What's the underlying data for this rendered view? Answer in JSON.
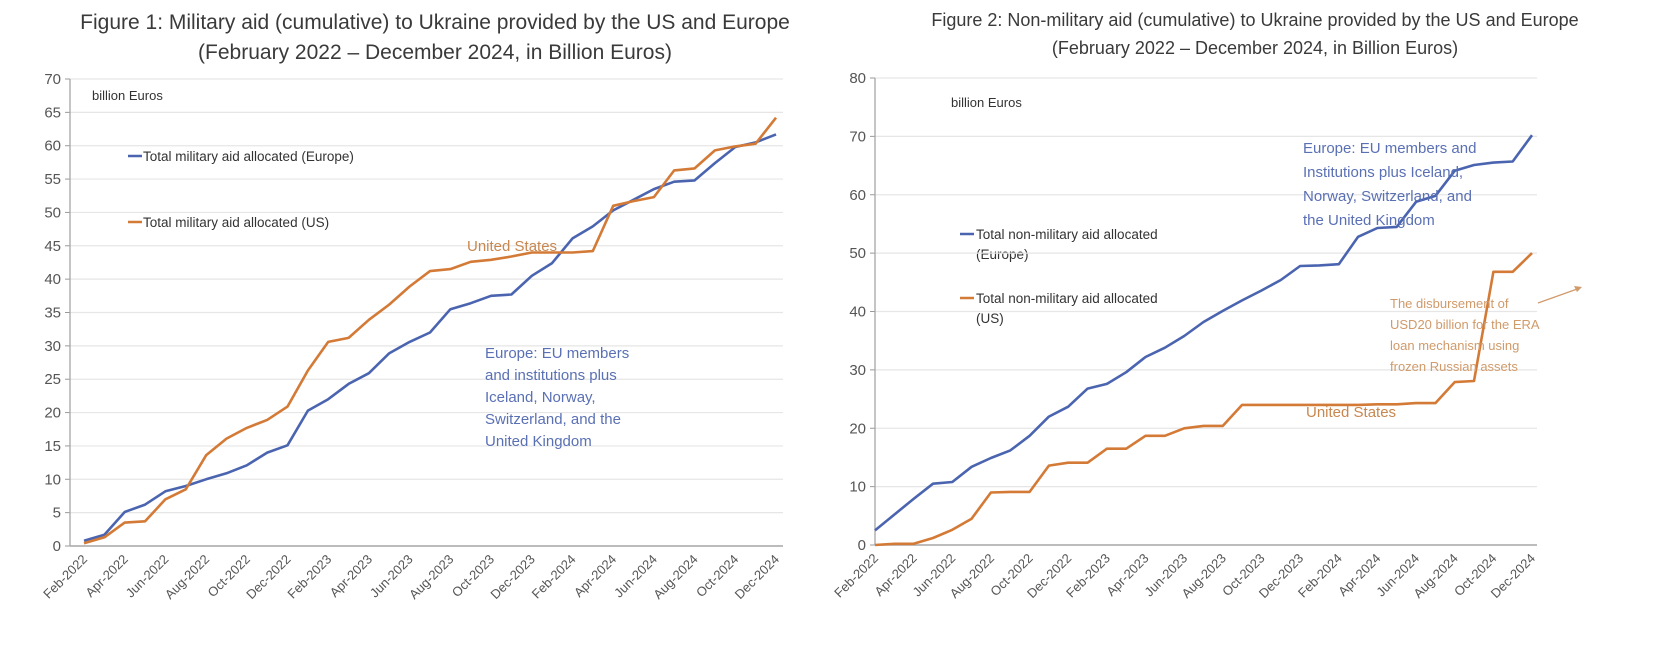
{
  "chart_data": [
    {
      "type": "line",
      "title": "Figure 1: Military aid (cumulative) to Ukraine provided by the US and Europe",
      "subtitle": "(February 2022 – December 2024, in Billion Euros)",
      "unit_label": "billion Euros",
      "xlabel": "",
      "ylabel": "",
      "ylim": [
        0,
        70
      ],
      "yticks": [
        0,
        5,
        10,
        15,
        20,
        25,
        30,
        35,
        40,
        45,
        50,
        55,
        60,
        65,
        70
      ],
      "grid": true,
      "legend_position": "top-left",
      "x_tick_labels": [
        "Feb-2022",
        "Apr-2022",
        "Jun-2022",
        "Aug-2022",
        "Oct-2022",
        "Dec-2022",
        "Feb-2023",
        "Apr-2023",
        "Jun-2023",
        "Aug-2023",
        "Oct-2023",
        "Dec-2023",
        "Feb-2024",
        "Apr-2024",
        "Jun-2024",
        "Aug-2024",
        "Oct-2024",
        "Dec-2024"
      ],
      "x": [
        "Feb-2022",
        "Mar-2022",
        "Apr-2022",
        "May-2022",
        "Jun-2022",
        "Jul-2022",
        "Aug-2022",
        "Sep-2022",
        "Oct-2022",
        "Nov-2022",
        "Dec-2022",
        "Jan-2023",
        "Feb-2023",
        "Mar-2023",
        "Apr-2023",
        "May-2023",
        "Jun-2023",
        "Jul-2023",
        "Aug-2023",
        "Sep-2023",
        "Oct-2023",
        "Nov-2023",
        "Dec-2023",
        "Jan-2024",
        "Feb-2024",
        "Mar-2024",
        "Apr-2024",
        "May-2024",
        "Jun-2024",
        "Jul-2024",
        "Aug-2024",
        "Sep-2024",
        "Oct-2024",
        "Nov-2024",
        "Dec-2024"
      ],
      "series": [
        {
          "name": "Total military aid allocated (Europe)",
          "color": "#4a64b0",
          "values": [
            0.8,
            1.7,
            5.1,
            6.2,
            8.2,
            9.0,
            10.0,
            10.9,
            12.1,
            14.0,
            15.1,
            20.3,
            22.0,
            24.3,
            25.9,
            28.9,
            30.6,
            32.0,
            35.5,
            36.4,
            37.5,
            37.7,
            40.5,
            42.4,
            46.1,
            47.9,
            50.3,
            51.9,
            53.5,
            54.6,
            54.8,
            57.4,
            59.8,
            60.5,
            61.7
          ]
        },
        {
          "name": "Total military aid allocated (US)",
          "color": "#d47a37",
          "values": [
            0.4,
            1.3,
            3.5,
            3.7,
            7.0,
            8.5,
            13.6,
            16.1,
            17.7,
            18.9,
            20.9,
            26.3,
            30.6,
            31.2,
            33.9,
            36.2,
            38.9,
            41.2,
            41.5,
            42.6,
            42.9,
            43.4,
            44.0,
            44.0,
            44.0,
            44.2,
            51.0,
            51.7,
            52.3,
            56.3,
            56.6,
            59.3,
            59.9,
            60.3,
            64.2
          ]
        }
      ],
      "annotations": [
        {
          "text": "United States",
          "series": "US"
        },
        {
          "text_lines": [
            "Europe: EU members",
            "and institutions plus",
            "Iceland, Norway,",
            "Switzerland, and the",
            "United Kingdom"
          ],
          "series": "Europe"
        }
      ]
    },
    {
      "type": "line",
      "title": "Figure 2: Non-military aid (cumulative) to Ukraine provided by the US and Europe",
      "subtitle": "(February 2022 – December 2024, in Billion Euros)",
      "unit_label": "billion Euros",
      "xlabel": "",
      "ylabel": "",
      "ylim": [
        0,
        80
      ],
      "yticks": [
        0,
        10,
        20,
        30,
        40,
        50,
        60,
        70,
        80
      ],
      "grid": true,
      "legend_position": "left-middle",
      "x_tick_labels": [
        "Feb-2022",
        "Apr-2022",
        "Jun-2022",
        "Aug-2022",
        "Oct-2022",
        "Dec-2022",
        "Feb-2023",
        "Apr-2023",
        "Jun-2023",
        "Aug-2023",
        "Oct-2023",
        "Dec-2023",
        "Feb-2024",
        "Apr-2024",
        "Jun-2024",
        "Aug-2024",
        "Oct-2024",
        "Dec-2024"
      ],
      "x": [
        "Feb-2022",
        "Mar-2022",
        "Apr-2022",
        "May-2022",
        "Jun-2022",
        "Jul-2022",
        "Aug-2022",
        "Sep-2022",
        "Oct-2022",
        "Nov-2022",
        "Dec-2022",
        "Jan-2023",
        "Feb-2023",
        "Mar-2023",
        "Apr-2023",
        "May-2023",
        "Jun-2023",
        "Jul-2023",
        "Aug-2023",
        "Sep-2023",
        "Oct-2023",
        "Nov-2023",
        "Dec-2023",
        "Jan-2024",
        "Feb-2024",
        "Mar-2024",
        "Apr-2024",
        "May-2024",
        "Jun-2024",
        "Jul-2024",
        "Aug-2024",
        "Sep-2024",
        "Oct-2024",
        "Nov-2024",
        "Dec-2024"
      ],
      "series": [
        {
          "name": "Total non-military aid allocated (Europe)",
          "color": "#4a64b0",
          "values": [
            2.5,
            5.2,
            7.9,
            10.5,
            10.8,
            13.4,
            14.9,
            16.2,
            18.7,
            22.0,
            23.7,
            26.8,
            27.6,
            29.6,
            32.2,
            33.8,
            35.8,
            38.2,
            40.1,
            41.9,
            43.6,
            45.4,
            47.8,
            47.9,
            48.1,
            52.8,
            54.3,
            54.5,
            58.8,
            59.8,
            64.1,
            65.1,
            65.5,
            65.7,
            70.2
          ]
        },
        {
          "name": "Total non-military aid allocated (US)",
          "color": "#d47a37",
          "values": [
            0.0,
            0.2,
            0.2,
            1.2,
            2.6,
            4.5,
            9.0,
            9.1,
            9.1,
            13.6,
            14.1,
            14.1,
            16.5,
            16.5,
            18.7,
            18.7,
            20.0,
            20.4,
            20.4,
            24.0,
            24.0,
            24.0,
            24.0,
            24.0,
            24.0,
            24.0,
            24.1,
            24.1,
            24.3,
            24.3,
            27.9,
            28.1,
            46.8,
            46.8,
            50.0
          ]
        }
      ],
      "annotations": [
        {
          "text": "United States",
          "series": "US"
        },
        {
          "text_lines": [
            "Europe: EU members and",
            "Institutions plus Iceland,",
            "Norway, Switzerland, and",
            "the United Kingdom"
          ],
          "series": "Europe"
        },
        {
          "text_lines": [
            "The disbursement of",
            "USD20 billion for the ERA",
            "loan mechanism using",
            "frozen Russian assets"
          ],
          "series": "US",
          "points_to": "Oct-2024"
        }
      ]
    }
  ]
}
